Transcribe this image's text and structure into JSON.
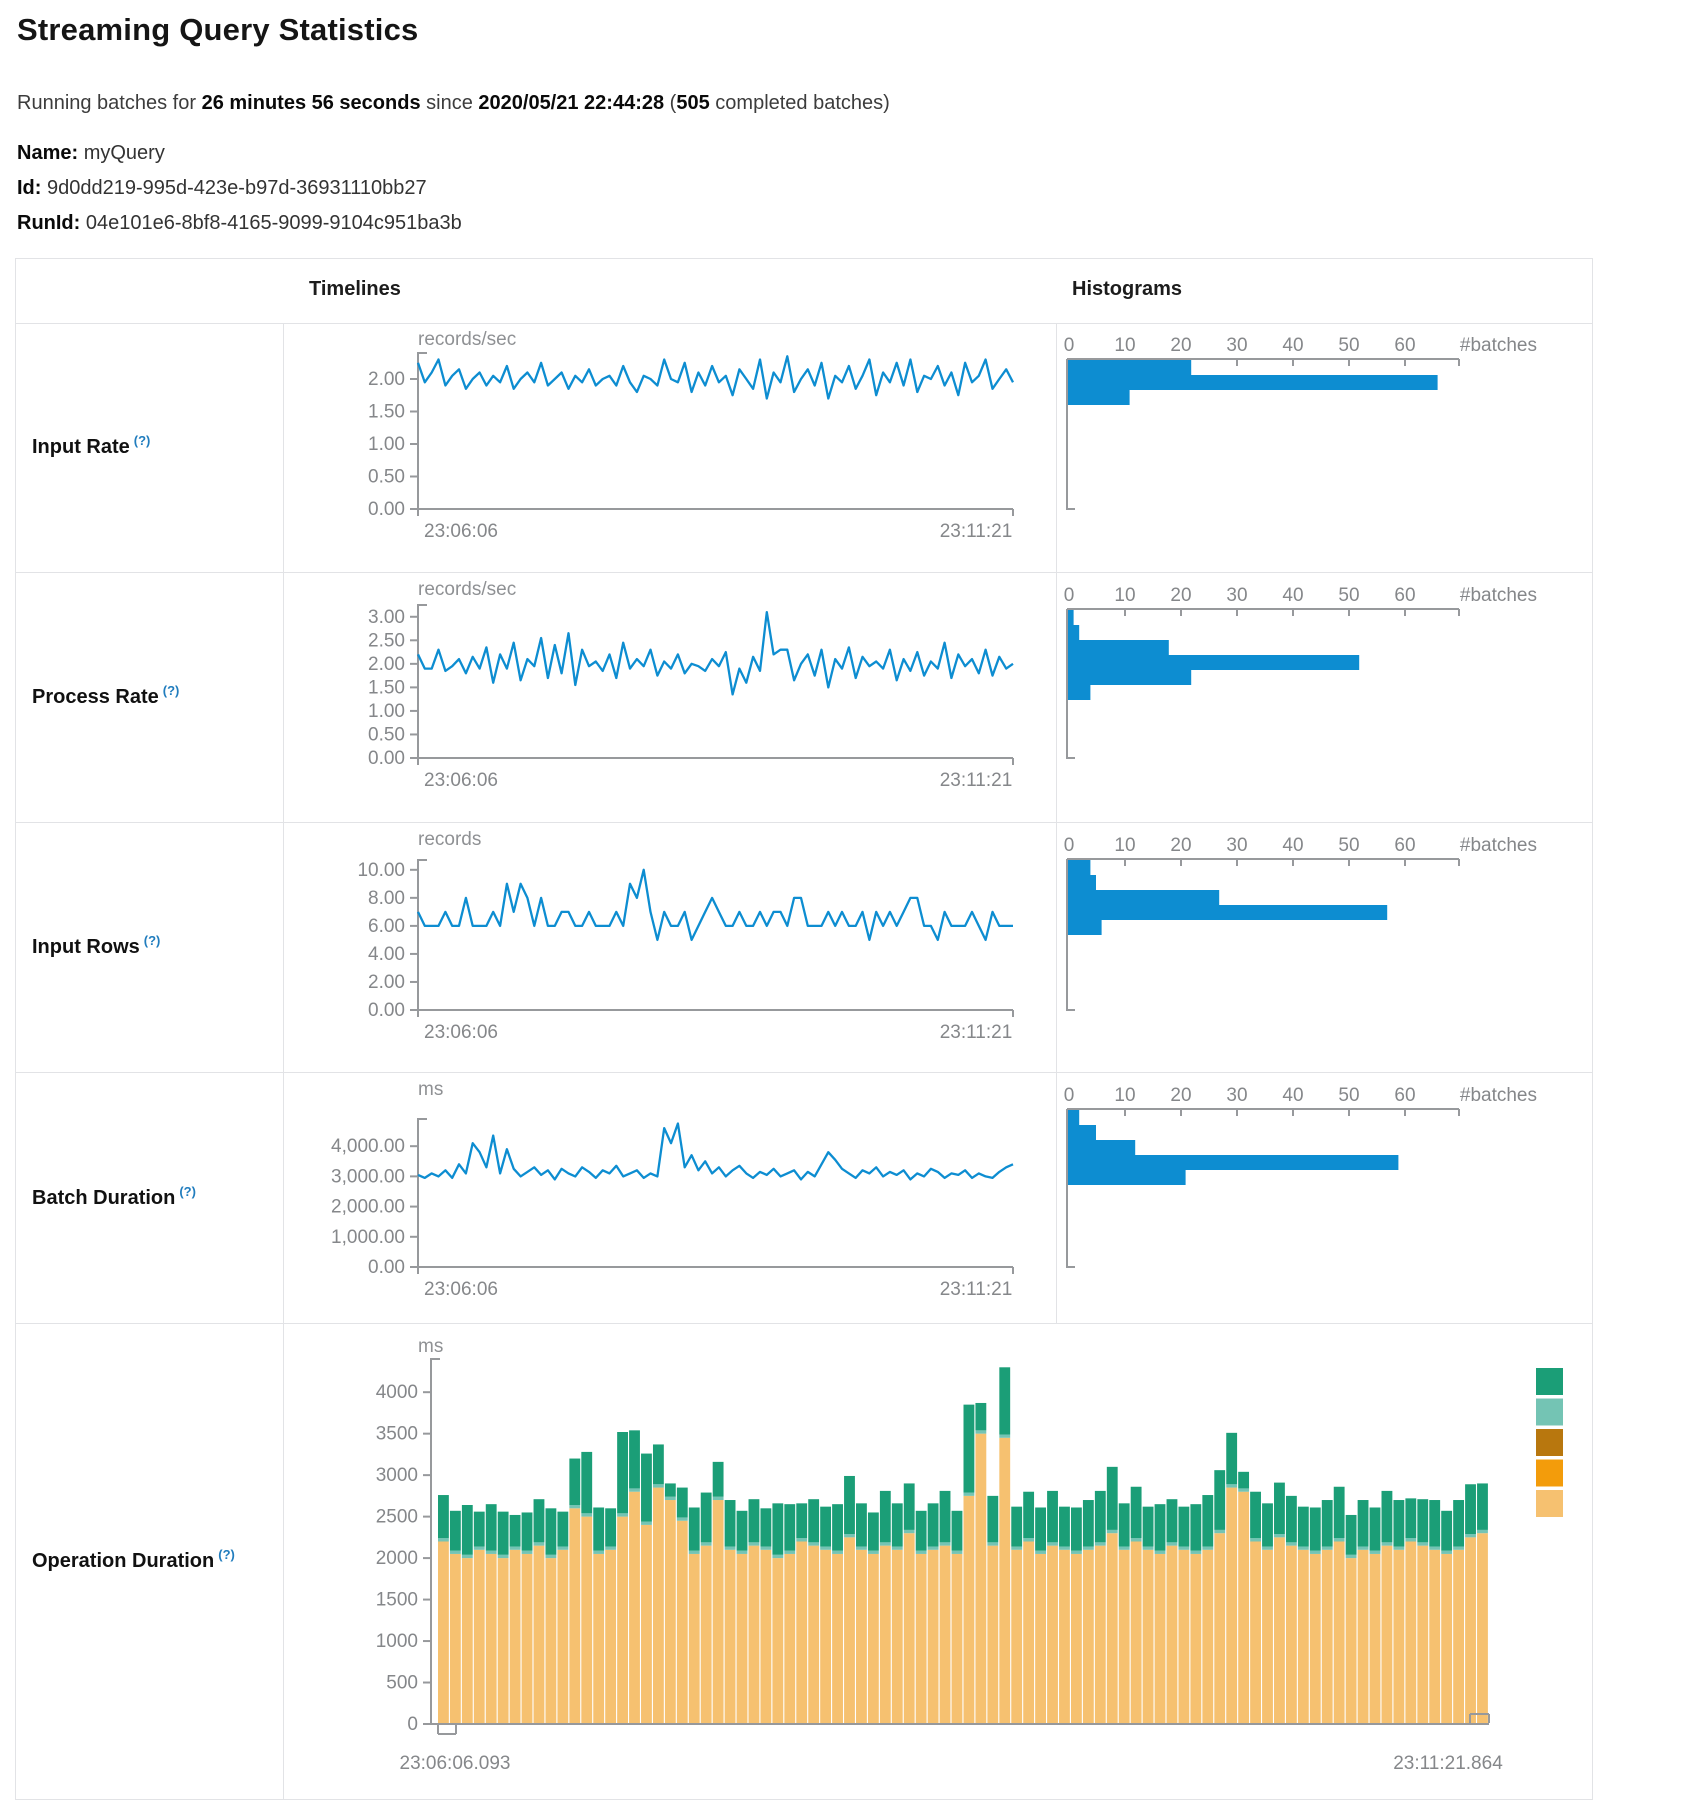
{
  "page": {
    "title": "Streaming Query Statistics",
    "subtitle": {
      "prefix": "Running batches for",
      "duration": "26 minutes 56 seconds",
      "mid": "since",
      "timestamp": "2020/05/21 22:44:28",
      "paren": "(",
      "batches": "505",
      "suffix": "completed batches)"
    },
    "meta": [
      {
        "label": "Name:",
        "value": "myQuery"
      },
      {
        "label": "Id:",
        "value": "9d0dd219-995d-423e-b97d-36931110bb27"
      },
      {
        "label": "RunId:",
        "value": "04e101e6-8bf8-4165-9099-9104c951ba3b"
      }
    ],
    "columns": {
      "timelines": "Timelines",
      "histograms": "Histograms"
    },
    "help_marker": "(?)"
  },
  "colors": {
    "accent_blue": "#0d8dd1",
    "axis_gray": "#97999c",
    "tick_text": "#85878a",
    "legend": [
      "#1b9e77",
      "#74c4b4",
      "#b8770e",
      "#f39c0b",
      "#f6c170"
    ]
  },
  "chart_data": [
    {
      "type": "line",
      "label": "Input Rate",
      "unit": "records/sec",
      "y_range": [
        0,
        2.4
      ],
      "yticks": [
        {
          "v": 2,
          "t": "2.00"
        },
        {
          "v": 1.5,
          "t": "1.50"
        },
        {
          "v": 1,
          "t": "1.00"
        },
        {
          "v": 0.5,
          "t": "0.50"
        },
        {
          "v": 0,
          "t": "0.00"
        }
      ],
      "x_start": "23:06:06",
      "x_end": "23:11:21",
      "values": [
        2.25,
        1.95,
        2.1,
        2.3,
        1.9,
        2.05,
        2.15,
        1.85,
        2.0,
        2.1,
        1.9,
        2.05,
        1.95,
        2.2,
        1.85,
        2.0,
        2.1,
        1.95,
        2.25,
        1.9,
        2.0,
        2.1,
        1.85,
        2.05,
        1.95,
        2.15,
        1.9,
        2.0,
        2.05,
        1.9,
        2.2,
        1.95,
        1.8,
        2.05,
        2.0,
        1.9,
        2.3,
        2.0,
        1.95,
        2.25,
        1.8,
        2.1,
        1.9,
        2.2,
        1.95,
        2.05,
        1.75,
        2.15,
        2.0,
        1.85,
        2.3,
        1.7,
        2.1,
        1.95,
        2.35,
        1.8,
        2.0,
        2.15,
        1.9,
        2.25,
        1.7,
        2.05,
        1.95,
        2.2,
        1.85,
        2.05,
        2.3,
        1.75,
        2.1,
        1.95,
        2.25,
        1.9,
        2.3,
        1.8,
        2.05,
        2.0,
        2.2,
        1.9,
        2.1,
        1.75,
        2.25,
        1.95,
        2.05,
        2.3,
        1.85,
        2.0,
        2.15,
        1.95
      ],
      "histogram": {
        "xticks": [
          0,
          10,
          20,
          30,
          40,
          50,
          60
        ],
        "xlabel": "#batches",
        "bars": [
          22,
          66,
          11
        ]
      }
    },
    {
      "type": "line",
      "label": "Process Rate",
      "unit": "records/sec",
      "y_range": [
        0,
        3.25
      ],
      "yticks": [
        {
          "v": 3,
          "t": "3.00"
        },
        {
          "v": 2.5,
          "t": "2.50"
        },
        {
          "v": 2,
          "t": "2.00"
        },
        {
          "v": 1.5,
          "t": "1.50"
        },
        {
          "v": 1,
          "t": "1.00"
        },
        {
          "v": 0.5,
          "t": "0.50"
        },
        {
          "v": 0,
          "t": "0.00"
        }
      ],
      "x_start": "23:06:06",
      "x_end": "23:11:21",
      "values": [
        2.2,
        1.9,
        1.9,
        2.3,
        1.85,
        1.95,
        2.1,
        1.8,
        2.15,
        1.9,
        2.35,
        1.6,
        2.2,
        1.9,
        2.45,
        1.65,
        2.1,
        1.95,
        2.55,
        1.7,
        2.4,
        1.8,
        2.65,
        1.55,
        2.3,
        1.95,
        2.05,
        1.85,
        2.2,
        1.7,
        2.45,
        1.9,
        2.1,
        1.95,
        2.3,
        1.75,
        2.05,
        1.9,
        2.2,
        1.8,
        2.0,
        1.95,
        1.85,
        2.1,
        1.95,
        2.25,
        1.35,
        1.9,
        1.6,
        2.15,
        1.85,
        3.1,
        2.2,
        2.3,
        2.3,
        1.65,
        2.0,
        2.2,
        1.75,
        2.3,
        1.5,
        2.1,
        1.9,
        2.35,
        1.7,
        2.15,
        1.95,
        2.05,
        1.9,
        2.3,
        1.65,
        2.1,
        1.85,
        2.25,
        1.75,
        2.05,
        1.9,
        2.45,
        1.7,
        2.2,
        1.95,
        2.1,
        1.8,
        2.3,
        1.75,
        2.15,
        1.9,
        2.0
      ],
      "histogram": {
        "xticks": [
          0,
          10,
          20,
          30,
          40,
          50,
          60
        ],
        "xlabel": "#batches",
        "bars": [
          1,
          2,
          18,
          52,
          22,
          4
        ]
      }
    },
    {
      "type": "line",
      "label": "Input Rows",
      "unit": "records",
      "y_range": [
        0,
        10.7
      ],
      "yticks": [
        {
          "v": 10,
          "t": "10.00"
        },
        {
          "v": 8,
          "t": "8.00"
        },
        {
          "v": 6,
          "t": "6.00"
        },
        {
          "v": 4,
          "t": "4.00"
        },
        {
          "v": 2,
          "t": "2.00"
        },
        {
          "v": 0,
          "t": "0.00"
        }
      ],
      "x_start": "23:06:06",
      "x_end": "23:11:21",
      "values": [
        7,
        6,
        6,
        6,
        7,
        6,
        6,
        8,
        6,
        6,
        6,
        7,
        6,
        9,
        7,
        9,
        8,
        6,
        8,
        6,
        6,
        7,
        7,
        6,
        6,
        7,
        6,
        6,
        6,
        7,
        6,
        9,
        8,
        10,
        7,
        5,
        7,
        6,
        6,
        7,
        5,
        6,
        7,
        8,
        7,
        6,
        6,
        7,
        6,
        6,
        7,
        6,
        7,
        7,
        6,
        8,
        8,
        6,
        6,
        6,
        7,
        6,
        7,
        6,
        6,
        7,
        5,
        7,
        6,
        7,
        6,
        7,
        8,
        8,
        6,
        6,
        5,
        7,
        6,
        6,
        6,
        7,
        6,
        5,
        7,
        6,
        6,
        6
      ],
      "histogram": {
        "xticks": [
          0,
          10,
          20,
          30,
          40,
          50,
          60
        ],
        "xlabel": "#batches",
        "bars": [
          4,
          5,
          27,
          57,
          6
        ]
      }
    },
    {
      "type": "line",
      "label": "Batch Duration",
      "unit": "ms",
      "y_range": [
        0,
        4900
      ],
      "yticks": [
        {
          "v": 4000,
          "t": "4,000.00"
        },
        {
          "v": 3000,
          "t": "3,000.00"
        },
        {
          "v": 2000,
          "t": "2,000.00"
        },
        {
          "v": 1000,
          "t": "1,000.00"
        },
        {
          "v": 0,
          "t": "0.00"
        }
      ],
      "x_start": "23:06:06",
      "x_end": "23:11:21",
      "values": [
        3050,
        2950,
        3100,
        3000,
        3200,
        2950,
        3400,
        3100,
        4100,
        3800,
        3300,
        4350,
        3100,
        3900,
        3250,
        3000,
        3150,
        3300,
        3050,
        3200,
        2900,
        3250,
        3100,
        3000,
        3300,
        3150,
        2950,
        3200,
        3100,
        3350,
        3000,
        3100,
        3200,
        2950,
        3100,
        3000,
        4600,
        4100,
        4750,
        3300,
        3700,
        3200,
        3500,
        3100,
        3300,
        3000,
        3200,
        3350,
        3100,
        2950,
        3150,
        3050,
        3250,
        3000,
        3100,
        3200,
        2900,
        3150,
        3000,
        3400,
        3800,
        3550,
        3250,
        3100,
        2950,
        3200,
        3100,
        3300,
        3000,
        3150,
        3050,
        3200,
        2900,
        3100,
        3000,
        3250,
        3150,
        2950,
        3100,
        3050,
        3200,
        2950,
        3100,
        3000,
        2950,
        3150,
        3300,
        3400
      ],
      "histogram": {
        "xticks": [
          0,
          10,
          20,
          30,
          40,
          50,
          60
        ],
        "xlabel": "#batches",
        "bars": [
          2,
          5,
          12,
          59,
          21
        ]
      }
    },
    {
      "type": "stacked-bar",
      "label": "Operation Duration",
      "unit": "ms",
      "y_range": [
        0,
        4400
      ],
      "yticks": [
        {
          "v": 4000,
          "t": "4000"
        },
        {
          "v": 3500,
          "t": "3500"
        },
        {
          "v": 3000,
          "t": "3000"
        },
        {
          "v": 2500,
          "t": "2500"
        },
        {
          "v": 2000,
          "t": "2000"
        },
        {
          "v": 1500,
          "t": "1500"
        },
        {
          "v": 1000,
          "t": "1000"
        },
        {
          "v": 500,
          "t": "500"
        },
        {
          "v": 0,
          "t": "0"
        }
      ],
      "x_start": "23:06:06.093",
      "x_end": "23:11:21.864",
      "series": {
        "bottom": [
          2200,
          2050,
          2000,
          2100,
          2050,
          2000,
          2100,
          2050,
          2150,
          2000,
          2100,
          2600,
          2500,
          2050,
          2100,
          2500,
          2800,
          2400,
          2850,
          2700,
          2450,
          2050,
          2150,
          2700,
          2100,
          2050,
          2150,
          2100,
          2000,
          2050,
          2200,
          2150,
          2100,
          2050,
          2250,
          2100,
          2050,
          2150,
          2100,
          2300,
          2050,
          2100,
          2150,
          2050,
          2750,
          3500,
          2150,
          3450,
          2100,
          2200,
          2050,
          2150,
          2100,
          2050,
          2100,
          2150,
          2300,
          2100,
          2200,
          2100,
          2050,
          2150,
          2100,
          2050,
          2100,
          2300,
          2850,
          2800,
          2200,
          2100,
          2250,
          2150,
          2100,
          2050,
          2100,
          2200,
          2000,
          2100,
          2050,
          2150,
          2100,
          2200,
          2150,
          2100,
          2050,
          2100,
          2250,
          2300
        ],
        "middle_constant": 40,
        "top": [
          520,
          480,
          600,
          420,
          560,
          520,
          380,
          460,
          520,
          560,
          420,
          560,
          740,
          520,
          460,
          980,
          700,
          820,
          480,
          160,
          360,
          520,
          600,
          420,
          560,
          480,
          520,
          460,
          620,
          560,
          420,
          520,
          480,
          560,
          700,
          520,
          460,
          620,
          520,
          560,
          480,
          520,
          620,
          480,
          1060,
          330,
          560,
          810,
          480,
          560,
          520,
          620,
          480,
          520,
          560,
          620,
          760,
          520,
          620,
          480,
          560,
          520,
          480,
          560,
          620,
          720,
          620,
          200,
          560,
          520,
          620,
          560,
          480,
          520,
          560,
          620,
          480,
          560,
          520,
          620,
          560,
          480,
          520,
          560,
          480,
          560,
          600,
          560
        ]
      }
    }
  ]
}
